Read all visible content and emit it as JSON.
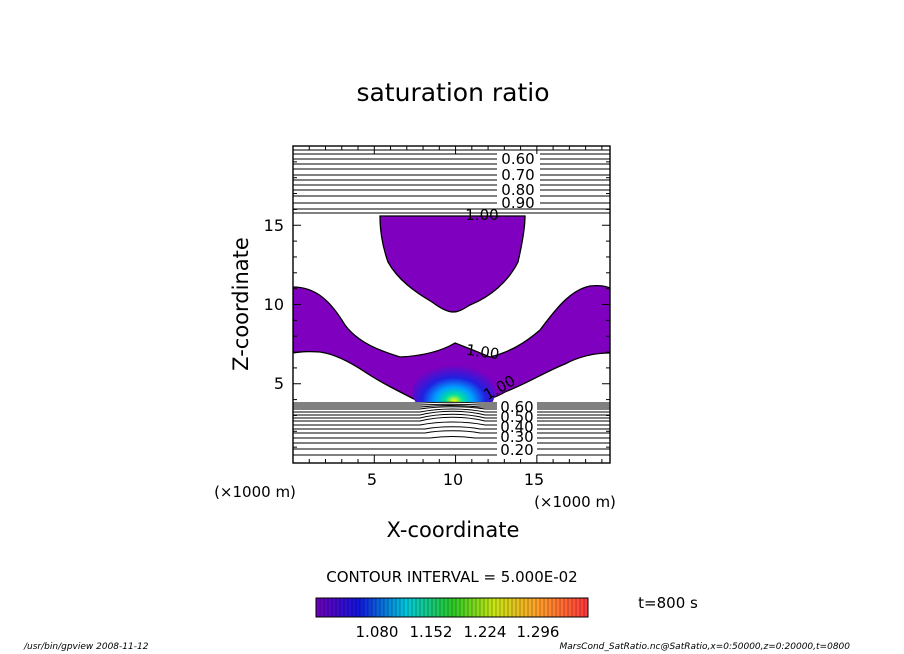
{
  "chart_data": {
    "type": "contour",
    "title": "saturation ratio",
    "xlabel": "X-coordinate",
    "ylabel": "Z-coordinate",
    "x_unit": "(×1000 m)",
    "y_unit": "(×1000 m)",
    "xlim": [
      0,
      19.5
    ],
    "ylim": [
      0,
      20
    ],
    "x_ticks": [
      5,
      10,
      15
    ],
    "y_ticks": [
      5,
      10,
      15
    ],
    "contour_interval_text": "CONTOUR INTERVAL = 5.000E-02",
    "contour_labels": [
      "0.60",
      "0.70",
      "0.80",
      "0.90",
      "1.00",
      "1.00",
      "1.00",
      "0.60",
      "0.50",
      "0.40",
      "0.30",
      "0.20"
    ],
    "colorbar_ticks": [
      "1.080",
      "1.152",
      "1.224",
      "1.296"
    ],
    "colorbar_range": [
      1.0,
      1.35
    ],
    "time_label": "t=800  s",
    "colors": {
      "filled_region": "#7f00bf",
      "colorbar_start": "#6a00b8",
      "colorbar_end": "#ff3a3a"
    }
  },
  "footer": {
    "left": "/usr/bin/gpview   2008-11-12",
    "right": "MarsCond_SatRatio.nc@SatRatio,x=0:50000,z=0:20000,t=0800"
  }
}
